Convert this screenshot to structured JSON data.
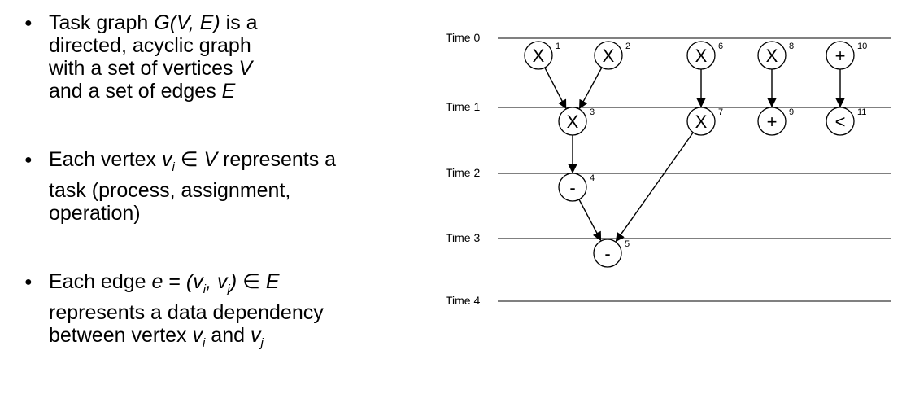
{
  "bullets": [
    {
      "lines": [
        [
          "Task graph ",
          {
            "i": "G(V, E)"
          },
          " is a"
        ],
        [
          "directed, acyclic graph"
        ],
        [
          "with a set of vertices ",
          {
            "i": "V"
          }
        ],
        [
          "and a set of edges ",
          {
            "i": "E"
          }
        ]
      ]
    },
    {
      "lines": [
        [
          "Each vertex ",
          {
            "i": "v"
          },
          {
            "sub": "i"
          },
          " ∈ ",
          {
            "i": "V"
          },
          " represents a"
        ],
        [
          "task (process, assignment,"
        ],
        [
          "operation)"
        ]
      ]
    },
    {
      "lines": [
        [
          "Each edge ",
          {
            "i": "e"
          },
          " = ",
          {
            "i": "(v"
          },
          {
            "sub": "i"
          },
          {
            "i": ", v"
          },
          {
            "sub": "j"
          },
          {
            "i": ")"
          },
          " ∈ ",
          {
            "i": "E"
          }
        ],
        [
          "represents a data dependency"
        ],
        [
          "between vertex ",
          {
            "i": "v"
          },
          {
            "sub": "i"
          },
          " and ",
          {
            "i": "v"
          },
          {
            "sub": "j"
          }
        ]
      ]
    }
  ],
  "timeline": {
    "labels": [
      "Time 0",
      "Time 1",
      "Time 2",
      "Time 3",
      "Time 4"
    ]
  },
  "nodes": [
    {
      "id": "1",
      "op": "X",
      "step": 0,
      "col": 1
    },
    {
      "id": "2",
      "op": "X",
      "step": 0,
      "col": 2
    },
    {
      "id": "6",
      "op": "X",
      "step": 0,
      "col": 4
    },
    {
      "id": "8",
      "op": "X",
      "step": 0,
      "col": 5
    },
    {
      "id": "10",
      "op": "+",
      "step": 0,
      "col": 6
    },
    {
      "id": "3",
      "op": "X",
      "step": 1,
      "col": 1.5
    },
    {
      "id": "7",
      "op": "X",
      "step": 1,
      "col": 4
    },
    {
      "id": "9",
      "op": "+",
      "step": 1,
      "col": 5
    },
    {
      "id": "11",
      "op": "<",
      "step": 1,
      "col": 6
    },
    {
      "id": "4",
      "op": "-",
      "step": 2,
      "col": 1.5
    },
    {
      "id": "5",
      "op": "-",
      "step": 3,
      "col": 2.4
    }
  ],
  "edges": [
    [
      "1",
      "3"
    ],
    [
      "2",
      "3"
    ],
    [
      "3",
      "4"
    ],
    [
      "4",
      "5"
    ],
    [
      "7",
      "5"
    ],
    [
      "6",
      "7"
    ],
    [
      "8",
      "9"
    ],
    [
      "10",
      "11"
    ]
  ]
}
